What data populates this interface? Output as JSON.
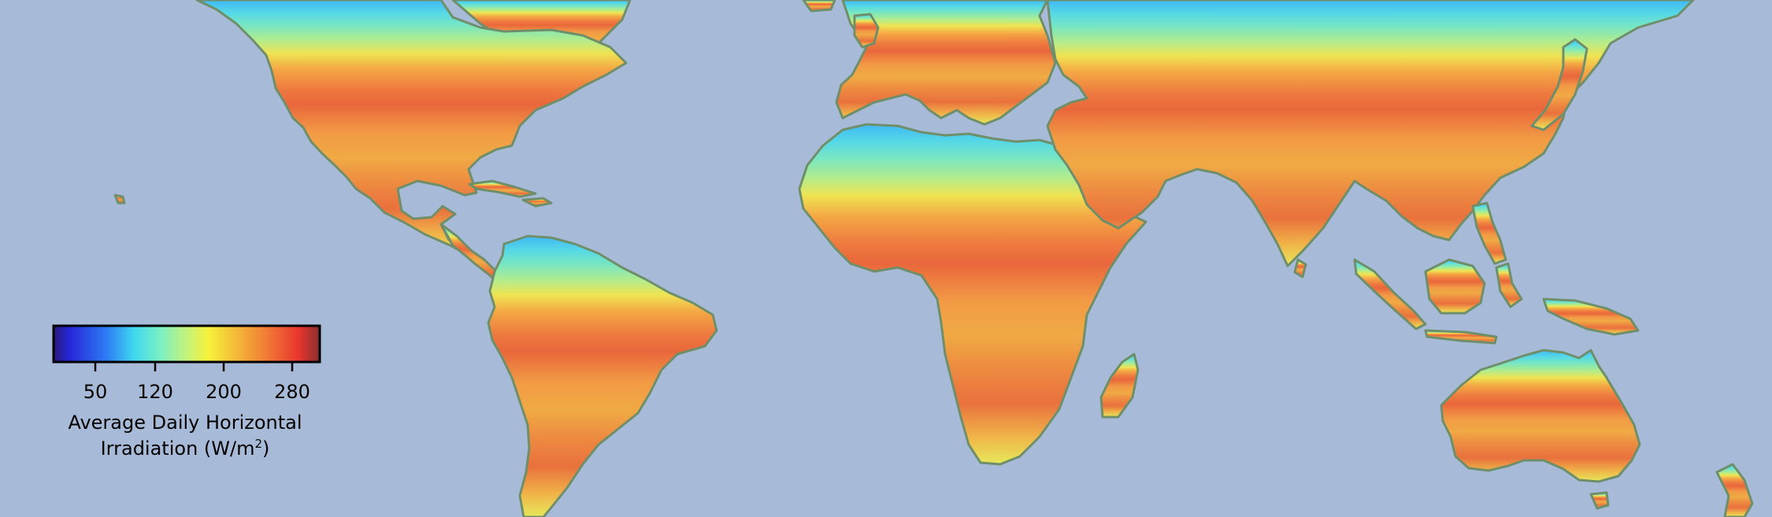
{
  "map": {
    "ocean_color": "#a7bbd9",
    "land_colormap": "jet",
    "regions": [
      "north-america",
      "central-america",
      "caribbean",
      "south-america",
      "greenland",
      "europe",
      "africa",
      "madagascar",
      "middle-east",
      "asia",
      "india",
      "southeast-asia",
      "japan",
      "indonesia",
      "new-guinea",
      "australia",
      "new-zealand"
    ]
  },
  "legend": {
    "ticks": [
      {
        "value": 50,
        "label": "50"
      },
      {
        "value": 120,
        "label": "120"
      },
      {
        "value": 200,
        "label": "200"
      },
      {
        "value": 280,
        "label": "280"
      }
    ],
    "range": [
      0,
      310
    ],
    "title_line1": "Average Daily Horizontal",
    "title_line2_prefix": "Irradiation (W/m",
    "title_line2_sup": "2",
    "title_line2_suffix": ")"
  }
}
